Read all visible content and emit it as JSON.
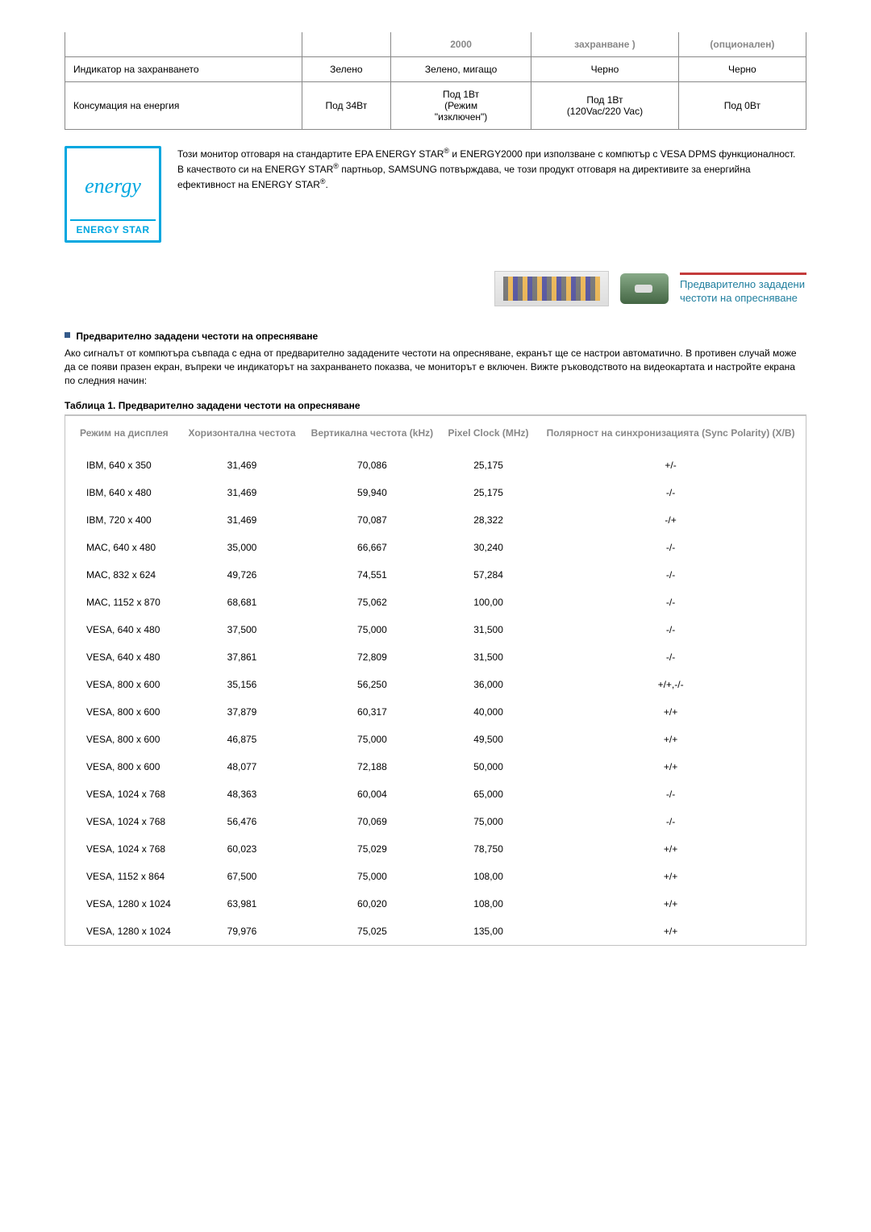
{
  "topTable": {
    "headers": [
      "",
      "",
      "2000",
      "захранване )",
      "(опционален)"
    ],
    "rows": [
      {
        "label": "Индикатор на захранването",
        "c1": "Зелено",
        "c2": "Зелено, мигащо",
        "c3": "Черно",
        "c4": "Черно"
      },
      {
        "label": "Консумация на енергия",
        "c1": "Под 34Вт",
        "c2": "Под 1Вт\n(Режим\n\"изключен\")",
        "c3": "Под 1Вт\n(120Vac/220 Vac)",
        "c4": "Под 0Вт"
      }
    ]
  },
  "energyStar": {
    "script": "energy",
    "label": "ENERGY STAR",
    "para1a": "Този монитор отговаря на стандартите EPA ENERGY STAR",
    "para1b": " и ENERGY2000 при използване с компютър с VESA DPMS функционалност.",
    "para2a": "В качеството си на ENERGY STAR",
    "para2b": " партньор, SAMSUNG потвърждава, че този продукт отговаря на директивите за енергийна ефективност на ENERGY STAR",
    "para2c": ".",
    "reg": "®"
  },
  "banner": {
    "line1": "Предварително зададени",
    "line2": "честоти на опресняване"
  },
  "section": {
    "title": "Предварително зададени честоти на опресняване",
    "para": "Ако сигналът от компютъра съвпада с една от предварително зададените честоти на опресняване, екранът ще се настрои автоматично. В противен случай може да се появи празен екран, въпреки че индикаторът на захранването показва, че мониторът е включен. Вижте ръководството на видеокартата и настройте екрана по следния начин:"
  },
  "table2": {
    "caption": "Таблица 1. Предварително зададени честоти на опресняване",
    "headers": {
      "mode": "Режим на дисплея",
      "h": "Хоризонтална честота",
      "v": "Вертикална честота (kHz)",
      "pc": "Pixel Clock (MHz)",
      "sp": "Полярност на синхронизацията (Sync Polarity) (X/B)"
    },
    "rows": [
      [
        "IBM, 640 x 350",
        "31,469",
        "70,086",
        "25,175",
        "+/-"
      ],
      [
        "IBM, 640 x 480",
        "31,469",
        "59,940",
        "25,175",
        "-/-"
      ],
      [
        "IBM, 720 x 400",
        "31,469",
        "70,087",
        "28,322",
        "-/+"
      ],
      [
        "MAC, 640 x 480",
        "35,000",
        "66,667",
        "30,240",
        "-/-"
      ],
      [
        "MAC, 832 x 624",
        "49,726",
        "74,551",
        "57,284",
        "-/-"
      ],
      [
        "MAC, 1152 x 870",
        "68,681",
        "75,062",
        "100,00",
        "-/-"
      ],
      [
        "VESA, 640 x 480",
        "37,500",
        "75,000",
        "31,500",
        "-/-"
      ],
      [
        "VESA, 640 x 480",
        "37,861",
        "72,809",
        "31,500",
        "-/-"
      ],
      [
        "VESA, 800 x 600",
        "35,156",
        "56,250",
        "36,000",
        "+/+,-/-"
      ],
      [
        "VESA, 800 x 600",
        "37,879",
        "60,317",
        "40,000",
        "+/+"
      ],
      [
        "VESA, 800 x 600",
        "46,875",
        "75,000",
        "49,500",
        "+/+"
      ],
      [
        "VESA, 800 x 600",
        "48,077",
        "72,188",
        "50,000",
        "+/+"
      ],
      [
        "VESA, 1024 x 768",
        "48,363",
        "60,004",
        "65,000",
        "-/-"
      ],
      [
        "VESA, 1024 x 768",
        "56,476",
        "70,069",
        "75,000",
        "-/-"
      ],
      [
        "VESA, 1024 x 768",
        "60,023",
        "75,029",
        "78,750",
        "+/+"
      ],
      [
        "VESA, 1152 x 864",
        "67,500",
        "75,000",
        "108,00",
        "+/+"
      ],
      [
        "VESA, 1280 x 1024",
        "63,981",
        "60,020",
        "108,00",
        "+/+"
      ],
      [
        "VESA, 1280 x 1024",
        "79,976",
        "75,025",
        "135,00",
        "+/+"
      ]
    ]
  }
}
